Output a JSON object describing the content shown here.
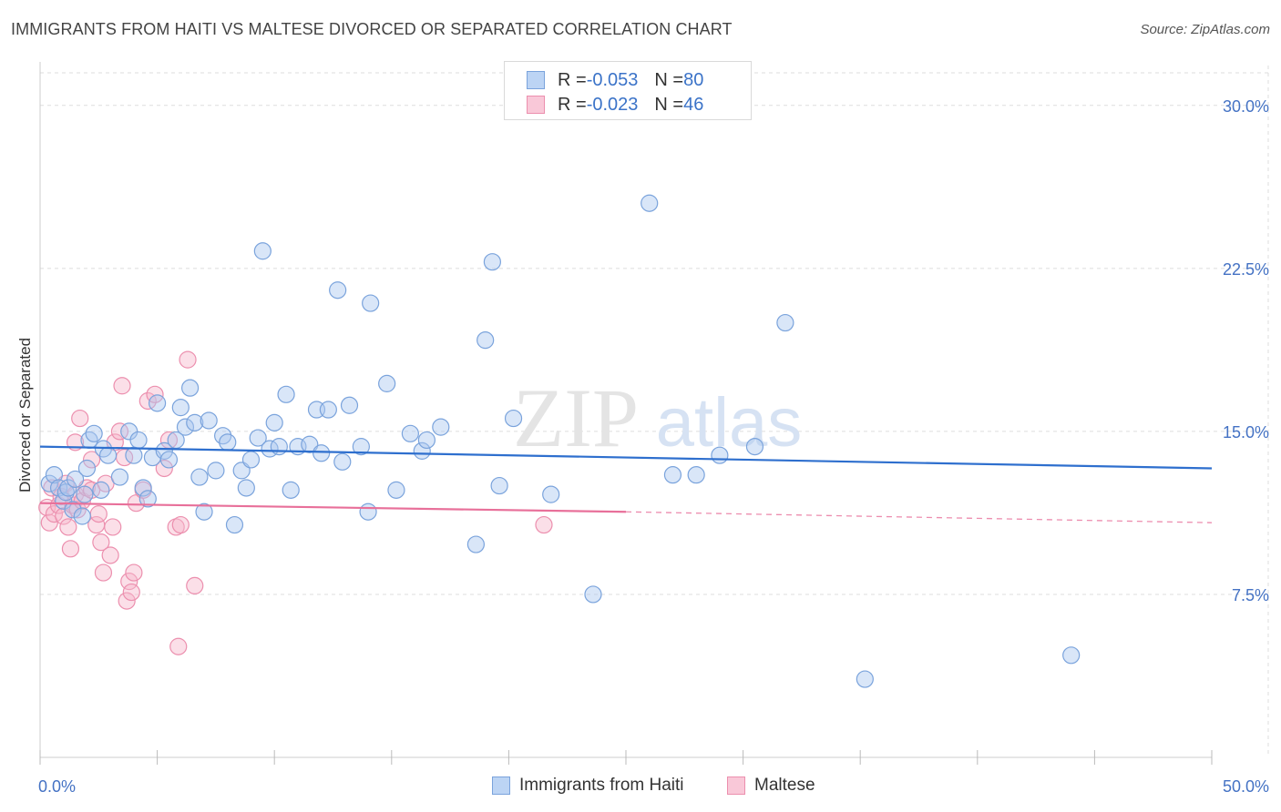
{
  "title": "IMMIGRANTS FROM HAITI VS MALTESE DIVORCED OR SEPARATED CORRELATION CHART",
  "source": "Source: ZipAtlas.com",
  "watermark": {
    "zip": "ZIP",
    "atlas": "atlas"
  },
  "legend": {
    "blue": {
      "r_label": "R = ",
      "r_value": "-0.053",
      "n_label": "N = ",
      "n_value": "80"
    },
    "pink": {
      "r_label": "R = ",
      "r_value": "-0.023",
      "n_label": "N = ",
      "n_value": "46"
    }
  },
  "colors": {
    "blue_fill": "#aac8f0",
    "blue_stroke": "#7aa3dc",
    "blue_line": "#2e6fce",
    "pink_fill": "#f6b8cc",
    "pink_stroke": "#ec8fae",
    "pink_line": "#e8709a",
    "grid": "#dddddd",
    "axis_text": "#4472c4"
  },
  "chart_data": {
    "type": "scatter",
    "title": "IMMIGRANTS FROM HAITI VS MALTESE DIVORCED OR SEPARATED CORRELATION CHART",
    "xlabel": "",
    "ylabel": "Divorced or Separated",
    "xlim": [
      0,
      50
    ],
    "ylim": [
      0,
      31.5
    ],
    "x_ticks": [
      0,
      5,
      10,
      15,
      20,
      25,
      30,
      35,
      40,
      45,
      50
    ],
    "x_tick_labels": [
      {
        "value": 0,
        "label": "0.0%"
      },
      {
        "value": 50,
        "label": "50.0%"
      }
    ],
    "y_ticks": [
      {
        "value": 7.5,
        "label": "7.5%"
      },
      {
        "value": 15.0,
        "label": "15.0%"
      },
      {
        "value": 22.5,
        "label": "22.5%"
      },
      {
        "value": 30.0,
        "label": "30.0%"
      }
    ],
    "series": [
      {
        "name": "Immigrants from Haiti",
        "color": "blue",
        "trend": {
          "x0": 0,
          "y0": 14.3,
          "x1": 50,
          "y1": 13.3
        },
        "points": [
          [
            0.4,
            12.6
          ],
          [
            0.6,
            13.0
          ],
          [
            0.8,
            12.4
          ],
          [
            1.0,
            11.8
          ],
          [
            1.1,
            12.2
          ],
          [
            1.2,
            12.4
          ],
          [
            1.4,
            11.4
          ],
          [
            1.5,
            12.8
          ],
          [
            1.8,
            11.1
          ],
          [
            1.9,
            12.1
          ],
          [
            2.0,
            13.3
          ],
          [
            2.1,
            14.6
          ],
          [
            2.3,
            14.9
          ],
          [
            2.6,
            12.3
          ],
          [
            2.7,
            14.2
          ],
          [
            2.9,
            13.9
          ],
          [
            3.4,
            12.9
          ],
          [
            3.8,
            15.0
          ],
          [
            4.0,
            13.9
          ],
          [
            4.2,
            14.6
          ],
          [
            4.4,
            12.4
          ],
          [
            4.6,
            11.9
          ],
          [
            4.8,
            13.8
          ],
          [
            5.0,
            16.3
          ],
          [
            5.3,
            14.1
          ],
          [
            5.5,
            13.7
          ],
          [
            5.8,
            14.6
          ],
          [
            6.0,
            16.1
          ],
          [
            6.2,
            15.2
          ],
          [
            6.4,
            17.0
          ],
          [
            6.6,
            15.4
          ],
          [
            6.8,
            12.9
          ],
          [
            7.0,
            11.3
          ],
          [
            7.2,
            15.5
          ],
          [
            7.5,
            13.2
          ],
          [
            7.8,
            14.8
          ],
          [
            8.0,
            14.5
          ],
          [
            8.3,
            10.7
          ],
          [
            8.6,
            13.2
          ],
          [
            8.8,
            12.4
          ],
          [
            9.0,
            13.7
          ],
          [
            9.3,
            14.7
          ],
          [
            9.5,
            23.3
          ],
          [
            9.8,
            14.2
          ],
          [
            10.0,
            15.4
          ],
          [
            10.2,
            14.3
          ],
          [
            10.5,
            16.7
          ],
          [
            10.7,
            12.3
          ],
          [
            11.0,
            14.3
          ],
          [
            11.5,
            14.4
          ],
          [
            11.8,
            16.0
          ],
          [
            12.0,
            14.0
          ],
          [
            12.3,
            16.0
          ],
          [
            12.7,
            21.5
          ],
          [
            12.9,
            13.6
          ],
          [
            13.2,
            16.2
          ],
          [
            13.7,
            14.3
          ],
          [
            14.1,
            20.9
          ],
          [
            14.0,
            11.3
          ],
          [
            14.8,
            17.2
          ],
          [
            15.2,
            12.3
          ],
          [
            15.8,
            14.9
          ],
          [
            16.3,
            14.1
          ],
          [
            16.5,
            14.6
          ],
          [
            17.1,
            15.2
          ],
          [
            19.0,
            19.2
          ],
          [
            18.6,
            9.8
          ],
          [
            19.3,
            22.8
          ],
          [
            19.6,
            12.5
          ],
          [
            20.2,
            15.6
          ],
          [
            21.8,
            12.1
          ],
          [
            23.6,
            7.5
          ],
          [
            26.0,
            25.5
          ],
          [
            27.0,
            13.0
          ],
          [
            28.0,
            13.0
          ],
          [
            29.0,
            13.9
          ],
          [
            30.5,
            14.3
          ],
          [
            31.8,
            20.0
          ],
          [
            35.2,
            3.6
          ],
          [
            44.0,
            4.7
          ]
        ]
      },
      {
        "name": "Maltese",
        "color": "pink",
        "trend": {
          "x0": 0,
          "y0": 11.7,
          "x1": 25,
          "y1": 11.3
        },
        "trend_ext": {
          "x0": 25,
          "y0": 11.3,
          "x1": 50,
          "y1": 10.8
        },
        "points": [
          [
            0.3,
            11.5
          ],
          [
            0.4,
            10.8
          ],
          [
            0.5,
            12.4
          ],
          [
            0.6,
            11.2
          ],
          [
            0.8,
            11.6
          ],
          [
            0.9,
            12.0
          ],
          [
            1.0,
            11.1
          ],
          [
            1.1,
            12.6
          ],
          [
            1.2,
            10.6
          ],
          [
            1.3,
            9.6
          ],
          [
            1.4,
            11.6
          ],
          [
            1.5,
            12.1
          ],
          [
            1.6,
            11.4
          ],
          [
            1.7,
            15.6
          ],
          [
            1.8,
            11.8
          ],
          [
            2.0,
            12.4
          ],
          [
            2.2,
            13.7
          ],
          [
            2.4,
            10.7
          ],
          [
            2.5,
            11.2
          ],
          [
            2.6,
            9.9
          ],
          [
            2.7,
            8.5
          ],
          [
            2.8,
            12.6
          ],
          [
            3.0,
            9.3
          ],
          [
            3.1,
            10.6
          ],
          [
            3.2,
            14.5
          ],
          [
            3.4,
            15.0
          ],
          [
            3.5,
            17.1
          ],
          [
            3.6,
            13.8
          ],
          [
            3.7,
            7.2
          ],
          [
            3.8,
            8.1
          ],
          [
            3.9,
            7.6
          ],
          [
            4.0,
            8.5
          ],
          [
            4.1,
            11.7
          ],
          [
            4.4,
            12.3
          ],
          [
            4.6,
            16.4
          ],
          [
            4.9,
            16.7
          ],
          [
            5.3,
            13.3
          ],
          [
            5.5,
            14.6
          ],
          [
            5.8,
            10.6
          ],
          [
            5.9,
            5.1
          ],
          [
            6.0,
            10.7
          ],
          [
            6.3,
            18.3
          ],
          [
            6.6,
            7.9
          ],
          [
            21.5,
            10.7
          ],
          [
            1.5,
            14.5
          ],
          [
            2.2,
            12.3
          ]
        ]
      }
    ]
  },
  "bottom_legend": {
    "blue_label": "Immigrants from Haiti",
    "pink_label": "Maltese"
  }
}
